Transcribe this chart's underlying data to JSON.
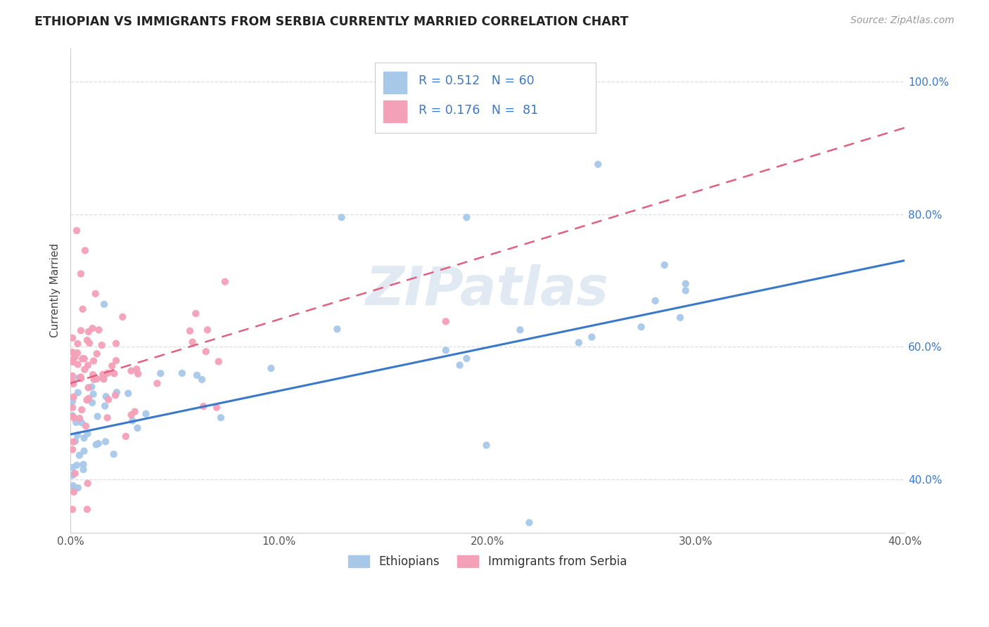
{
  "title": "ETHIOPIAN VS IMMIGRANTS FROM SERBIA CURRENTLY MARRIED CORRELATION CHART",
  "source": "Source: ZipAtlas.com",
  "ylabel": "Currently Married",
  "xlim": [
    0.0,
    0.4
  ],
  "ylim": [
    0.32,
    1.05
  ],
  "x_tick_labels": [
    "0.0%",
    "10.0%",
    "20.0%",
    "30.0%",
    "40.0%"
  ],
  "x_tick_vals": [
    0.0,
    0.1,
    0.2,
    0.3,
    0.4
  ],
  "y_tick_labels": [
    "100.0%",
    "80.0%",
    "60.0%",
    "40.0%"
  ],
  "y_tick_vals": [
    1.0,
    0.8,
    0.6,
    0.4
  ],
  "ethiopian_color": "#a8c8e8",
  "serbia_color": "#f4a0b8",
  "ethiopian_line_color": "#3a78c9",
  "serbia_line_color": "#e06080",
  "legend_text_color": "#3a78c9",
  "R_ethiopian": "0.512",
  "N_ethiopian": "60",
  "R_serbia": "0.176",
  "N_serbia": "81",
  "legend_label_1": "Ethiopians",
  "legend_label_2": "Immigrants from Serbia",
  "watermark": "ZIPatlas",
  "grid_color": "#d8dde8",
  "top_dashed_color": "#c0c8d8"
}
